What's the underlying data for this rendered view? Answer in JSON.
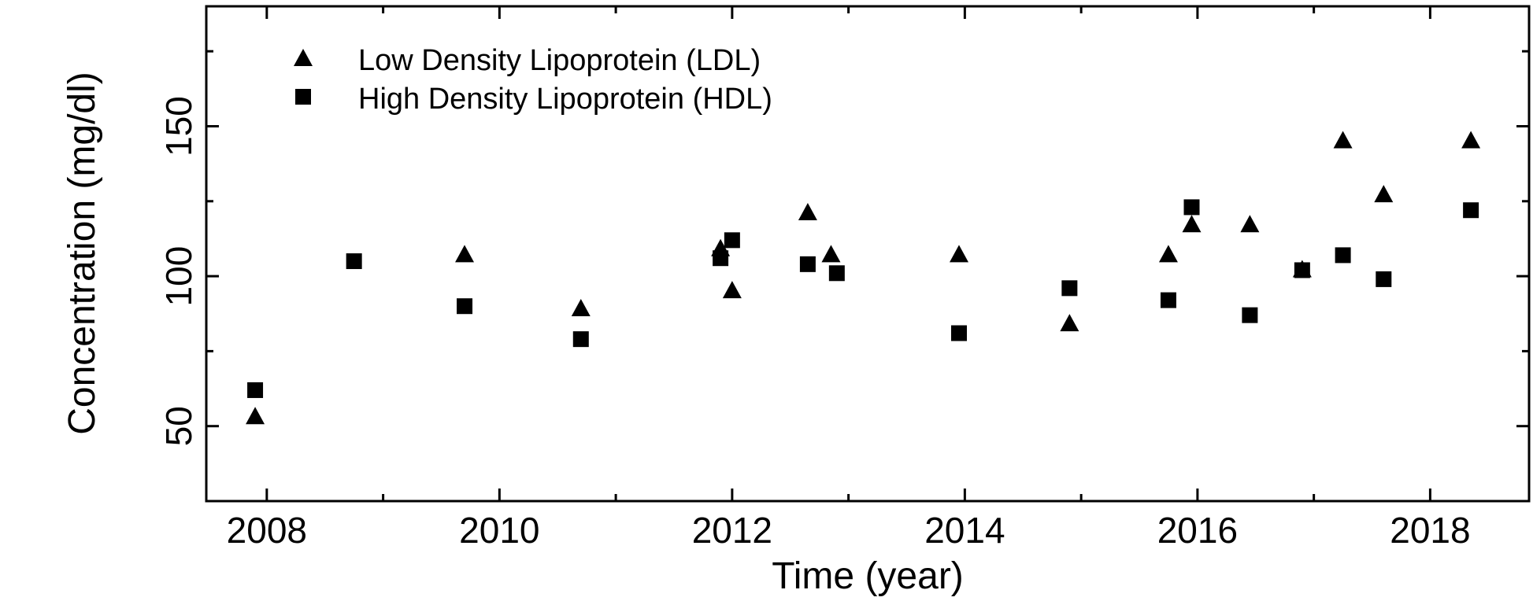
{
  "chart_data": {
    "type": "scatter",
    "xlabel": "Time (year)",
    "ylabel": "Concentration (mg/dl)",
    "xlim": [
      2007.48,
      2018.85
    ],
    "ylim": [
      25,
      190
    ],
    "x_ticks": [
      2008,
      2010,
      2012,
      2014,
      2016,
      2018
    ],
    "x_minor_ticks": [
      2009,
      2011,
      2013,
      2015,
      2017
    ],
    "y_ticks": [
      50,
      100,
      150
    ],
    "y_minor_ticks": [
      75,
      125,
      175
    ],
    "grid": false,
    "legend_position": "top-left-inside",
    "background_color": "#ffffff",
    "axis_color": "#000000",
    "marker_color": "#000000",
    "series": [
      {
        "name": "Low Density Lipoprotein (LDL)",
        "marker": "triangle",
        "points": [
          [
            2007.9,
            53
          ],
          [
            2009.7,
            107
          ],
          [
            2010.7,
            89
          ],
          [
            2011.9,
            109
          ],
          [
            2012.0,
            95
          ],
          [
            2012.65,
            121
          ],
          [
            2012.85,
            107
          ],
          [
            2013.95,
            107
          ],
          [
            2014.9,
            84
          ],
          [
            2015.75,
            107
          ],
          [
            2015.95,
            117
          ],
          [
            2016.45,
            117
          ],
          [
            2016.9,
            102
          ],
          [
            2017.25,
            145
          ],
          [
            2017.6,
            127
          ],
          [
            2018.35,
            145
          ]
        ]
      },
      {
        "name": "High Density Lipoprotein (HDL)",
        "marker": "square",
        "points": [
          [
            2007.9,
            62
          ],
          [
            2008.75,
            105
          ],
          [
            2009.7,
            90
          ],
          [
            2010.7,
            79
          ],
          [
            2011.9,
            106
          ],
          [
            2012.0,
            112
          ],
          [
            2012.65,
            104
          ],
          [
            2012.9,
            101
          ],
          [
            2013.95,
            81
          ],
          [
            2014.9,
            96
          ],
          [
            2015.75,
            92
          ],
          [
            2015.95,
            123
          ],
          [
            2016.45,
            87
          ],
          [
            2016.9,
            102
          ],
          [
            2017.25,
            107
          ],
          [
            2017.6,
            99
          ],
          [
            2018.35,
            122
          ]
        ]
      }
    ]
  }
}
